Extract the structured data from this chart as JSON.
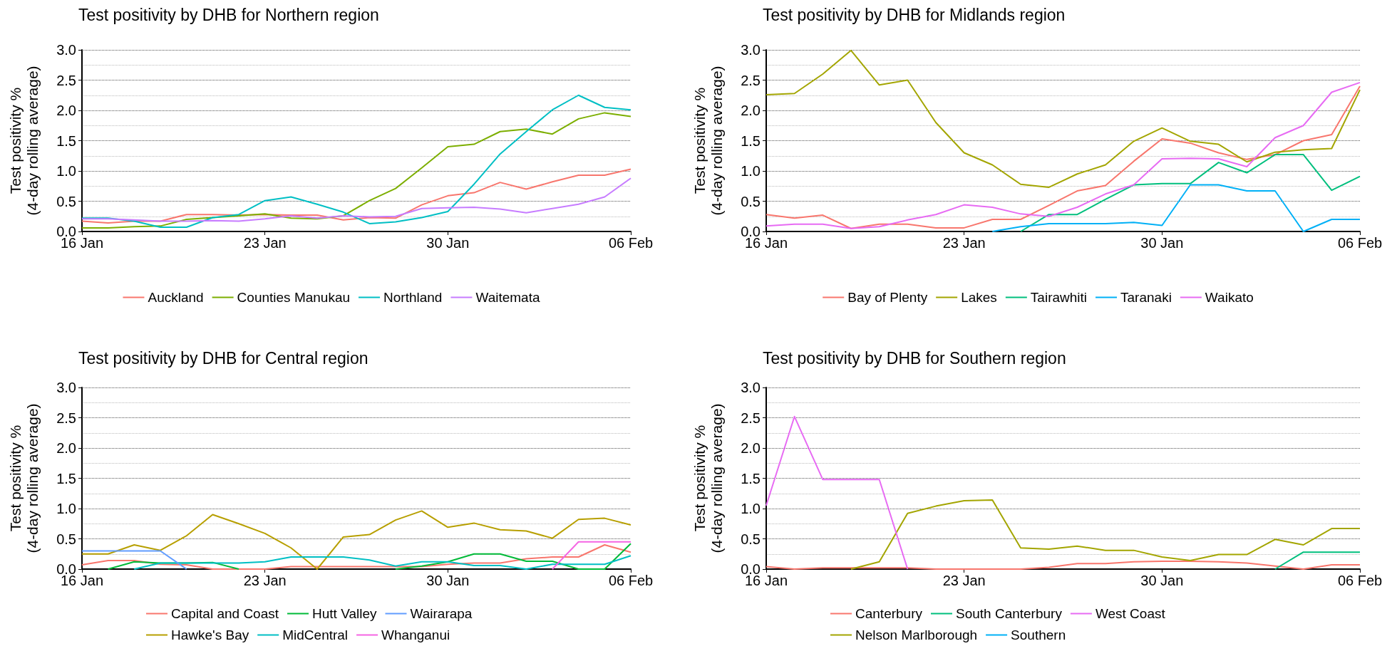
{
  "chart_data": [
    {
      "type": "line",
      "title": "Test positivity by DHB for Northern region",
      "ylabel": "Test positivity %\n(4-day rolling average)",
      "categories": [
        "16 Jan",
        null,
        null,
        null,
        null,
        null,
        null,
        "23 Jan",
        null,
        null,
        null,
        null,
        null,
        null,
        "30 Jan",
        null,
        null,
        null,
        null,
        null,
        null,
        "06 Feb"
      ],
      "ylim": [
        0,
        3
      ],
      "yticks": [
        {
          "value": 0,
          "label": "0.0"
        },
        {
          "value": 0.5,
          "label": "0.5"
        },
        {
          "value": 1,
          "label": "1.0"
        },
        {
          "value": 1.5,
          "label": "1.5"
        },
        {
          "value": 2,
          "label": "2.0"
        },
        {
          "value": 2.5,
          "label": "2.5"
        },
        {
          "value": 3,
          "label": "3.0"
        }
      ],
      "grid": "y",
      "legend": "bottom",
      "marker": "none",
      "series": [
        {
          "name": "Auckland",
          "color": "#f8766d",
          "values": [
            0.17,
            0.14,
            0.17,
            0.17,
            0.28,
            0.28,
            0.27,
            0.28,
            0.27,
            0.27,
            0.19,
            0.23,
            0.22,
            0.44,
            0.59,
            0.64,
            0.81,
            0.7,
            0.82,
            0.93,
            0.93,
            1.03
          ]
        },
        {
          "name": "Counties Manukau",
          "color": "#7cae00",
          "values": [
            0.06,
            0.06,
            0.08,
            0.09,
            0.2,
            0.23,
            0.26,
            0.29,
            0.22,
            0.21,
            0.26,
            0.51,
            0.71,
            1.05,
            1.4,
            1.44,
            1.65,
            1.69,
            1.61,
            1.86,
            1.96,
            1.9
          ]
        },
        {
          "name": "Northland",
          "color": "#00bfc4",
          "values": [
            0.22,
            0.22,
            0.17,
            0.07,
            0.07,
            0.23,
            0.28,
            0.51,
            0.57,
            0.45,
            0.32,
            0.13,
            0.16,
            0.23,
            0.33,
            0.78,
            1.28,
            1.65,
            2.01,
            2.25,
            2.05,
            2.01
          ]
        },
        {
          "name": "Waitemata",
          "color": "#c77cff",
          "values": [
            0.21,
            0.21,
            0.19,
            0.17,
            0.17,
            0.18,
            0.17,
            0.21,
            0.26,
            0.22,
            0.26,
            0.24,
            0.25,
            0.38,
            0.39,
            0.4,
            0.37,
            0.31,
            0.38,
            0.45,
            0.57,
            0.88
          ]
        }
      ]
    },
    {
      "type": "line",
      "title": "Test positivity by DHB for Midlands region",
      "ylabel": "Test positivity %\n(4-day rolling average)",
      "categories": [
        "16 Jan",
        null,
        null,
        null,
        null,
        null,
        null,
        "23 Jan",
        null,
        null,
        null,
        null,
        null,
        null,
        "30 Jan",
        null,
        null,
        null,
        null,
        null,
        null,
        "06 Feb"
      ],
      "ylim": [
        0,
        3
      ],
      "yticks": [
        {
          "value": 0,
          "label": "0.0"
        },
        {
          "value": 0.5,
          "label": "0.5"
        },
        {
          "value": 1,
          "label": "1.0"
        },
        {
          "value": 1.5,
          "label": "1.5"
        },
        {
          "value": 2,
          "label": "2.0"
        },
        {
          "value": 2.5,
          "label": "2.5"
        },
        {
          "value": 3,
          "label": "3.0"
        }
      ],
      "grid": "y",
      "legend": "bottom",
      "marker": "none",
      "series": [
        {
          "name": "Bay of Plenty",
          "color": "#f8766d",
          "values": [
            0.28,
            0.22,
            0.27,
            0.05,
            0.12,
            0.12,
            0.06,
            0.06,
            0.2,
            0.2,
            0.43,
            0.67,
            0.76,
            1.16,
            1.53,
            1.46,
            1.3,
            1.19,
            1.27,
            1.5,
            1.6,
            2.4
          ]
        },
        {
          "name": "Lakes",
          "color": "#a3a500",
          "values": [
            2.26,
            2.28,
            2.6,
            2.99,
            2.42,
            2.5,
            1.8,
            1.3,
            1.1,
            0.78,
            0.73,
            0.95,
            1.1,
            1.49,
            1.71,
            1.49,
            1.44,
            1.15,
            1.31,
            1.35,
            1.37,
            2.34
          ]
        },
        {
          "name": "Tairawhiti",
          "color": "#00bf7d",
          "values": [
            null,
            null,
            null,
            null,
            null,
            null,
            null,
            null,
            null,
            0,
            0.28,
            0.28,
            0.53,
            0.77,
            0.79,
            0.79,
            1.14,
            0.97,
            1.27,
            1.27,
            0.68,
            0.91
          ]
        },
        {
          "name": "Taranaki",
          "color": "#00b0f6",
          "values": [
            null,
            null,
            null,
            null,
            null,
            null,
            null,
            null,
            0,
            0.08,
            0.13,
            0.13,
            0.13,
            0.15,
            0.1,
            0.77,
            0.77,
            0.67,
            0.67,
            0,
            0.2,
            0.2
          ]
        },
        {
          "name": "Waikato",
          "color": "#e76bf3",
          "values": [
            0.09,
            0.12,
            0.12,
            0.05,
            0.08,
            0.19,
            0.28,
            0.44,
            0.4,
            0.29,
            0.25,
            0.4,
            0.62,
            0.77,
            1.2,
            1.21,
            1.2,
            1.07,
            1.55,
            1.75,
            2.3,
            2.46
          ]
        }
      ]
    },
    {
      "type": "line",
      "title": "Test positivity by DHB for Central region",
      "ylabel": "Test positivity %\n(4-day rolling average)",
      "categories": [
        "16 Jan",
        null,
        null,
        null,
        null,
        null,
        null,
        "23 Jan",
        null,
        null,
        null,
        null,
        null,
        null,
        "30 Jan",
        null,
        null,
        null,
        null,
        null,
        null,
        "06 Feb"
      ],
      "ylim": [
        0,
        3
      ],
      "yticks": [
        {
          "value": 0,
          "label": "0.0"
        },
        {
          "value": 0.5,
          "label": "0.5"
        },
        {
          "value": 1,
          "label": "1.0"
        },
        {
          "value": 1.5,
          "label": "1.5"
        },
        {
          "value": 2,
          "label": "2.0"
        },
        {
          "value": 2.5,
          "label": "2.5"
        },
        {
          "value": 3,
          "label": "3.0"
        }
      ],
      "grid": "y",
      "legend": "bottom",
      "marker": "none",
      "series": [
        {
          "name": "Capital and Coast",
          "color": "#f8766d",
          "values": [
            0.07,
            0.14,
            0.14,
            0.08,
            0.07,
            0,
            0,
            0,
            0.04,
            0.04,
            0.04,
            0.04,
            0.04,
            0.04,
            0.08,
            0.1,
            0.1,
            0.17,
            0.2,
            0.2,
            0.4,
            0.28
          ]
        },
        {
          "name": "Hawke's Bay",
          "color": "#b79f00",
          "values": [
            0.25,
            0.25,
            0.4,
            0.31,
            0.55,
            0.9,
            0.75,
            0.59,
            0.35,
            0,
            0.53,
            0.57,
            0.81,
            0.96,
            0.69,
            0.76,
            0.65,
            0.63,
            0.51,
            0.82,
            0.84,
            0.73
          ]
        },
        {
          "name": "Hutt Valley",
          "color": "#00ba38",
          "values": [
            null,
            0,
            0.12,
            0.1,
            0.1,
            0.11,
            0,
            null,
            null,
            null,
            null,
            null,
            0,
            0.05,
            0.12,
            0.25,
            0.25,
            0.13,
            0.13,
            0,
            0,
            0.42
          ]
        },
        {
          "name": "MidCentral",
          "color": "#00bfc4",
          "values": [
            null,
            null,
            0,
            0.1,
            0.1,
            0.1,
            0.1,
            0.12,
            0.2,
            0.2,
            0.2,
            0.15,
            0.05,
            0.12,
            0.12,
            0.06,
            0.06,
            0,
            0.08,
            0.08,
            0.08,
            0.22
          ]
        },
        {
          "name": "Wairarapa",
          "color": "#619cff",
          "values": [
            0.3,
            0.3,
            0.3,
            0.3,
            0,
            null,
            null,
            null,
            null,
            null,
            null,
            null,
            null,
            null,
            null,
            null,
            null,
            null,
            null,
            null,
            null,
            null
          ]
        },
        {
          "name": "Whanganui",
          "color": "#f564e3",
          "values": [
            null,
            null,
            null,
            null,
            null,
            null,
            null,
            null,
            null,
            null,
            null,
            null,
            null,
            null,
            null,
            null,
            null,
            null,
            0,
            0.45,
            0.45,
            0.45
          ]
        }
      ]
    },
    {
      "type": "line",
      "title": "Test positivity by DHB for Southern region",
      "ylabel": "Test positivity %\n(4-day rolling average)",
      "categories": [
        "16 Jan",
        null,
        null,
        null,
        null,
        null,
        null,
        "23 Jan",
        null,
        null,
        null,
        null,
        null,
        null,
        "30 Jan",
        null,
        null,
        null,
        null,
        null,
        null,
        "06 Feb"
      ],
      "ylim": [
        0,
        3
      ],
      "yticks": [
        {
          "value": 0,
          "label": "0.0"
        },
        {
          "value": 0.5,
          "label": "0.5"
        },
        {
          "value": 1,
          "label": "1.0"
        },
        {
          "value": 1.5,
          "label": "1.5"
        },
        {
          "value": 2,
          "label": "2.0"
        },
        {
          "value": 2.5,
          "label": "2.5"
        },
        {
          "value": 3,
          "label": "3.0"
        }
      ],
      "grid": "y",
      "legend": "bottom",
      "marker": "none",
      "series": [
        {
          "name": "Canterbury",
          "color": "#f8766d",
          "values": [
            0.04,
            0,
            0.02,
            0.02,
            0.02,
            0.02,
            0,
            0,
            0,
            0,
            0.03,
            0.09,
            0.09,
            0.12,
            0.13,
            0.13,
            0.12,
            0.1,
            0.05,
            0,
            0.07,
            0.07
          ]
        },
        {
          "name": "Nelson Marlborough",
          "color": "#a3a500",
          "values": [
            null,
            null,
            null,
            0,
            0.12,
            0.92,
            1.04,
            1.13,
            1.14,
            0.35,
            0.33,
            0.38,
            0.31,
            0.31,
            0.2,
            0.14,
            0.24,
            0.24,
            0.49,
            0.4,
            0.67,
            0.67
          ]
        },
        {
          "name": "South Canterbury",
          "color": "#00bf7d",
          "values": [
            null,
            null,
            null,
            null,
            null,
            null,
            null,
            null,
            null,
            null,
            null,
            null,
            null,
            null,
            null,
            null,
            null,
            null,
            0,
            0.28,
            0.28,
            0.28
          ]
        },
        {
          "name": "Southern",
          "color": "#00b0f6",
          "values": [
            null,
            null,
            null,
            null,
            null,
            null,
            null,
            null,
            null,
            null,
            null,
            null,
            null,
            null,
            null,
            null,
            null,
            null,
            null,
            null,
            null,
            null
          ]
        },
        {
          "name": "West Coast",
          "color": "#e76bf3",
          "values": [
            1.05,
            2.52,
            1.48,
            1.48,
            1.48,
            0,
            null,
            null,
            null,
            null,
            null,
            null,
            null,
            null,
            null,
            null,
            null,
            null,
            null,
            null,
            null,
            null
          ]
        }
      ]
    }
  ]
}
